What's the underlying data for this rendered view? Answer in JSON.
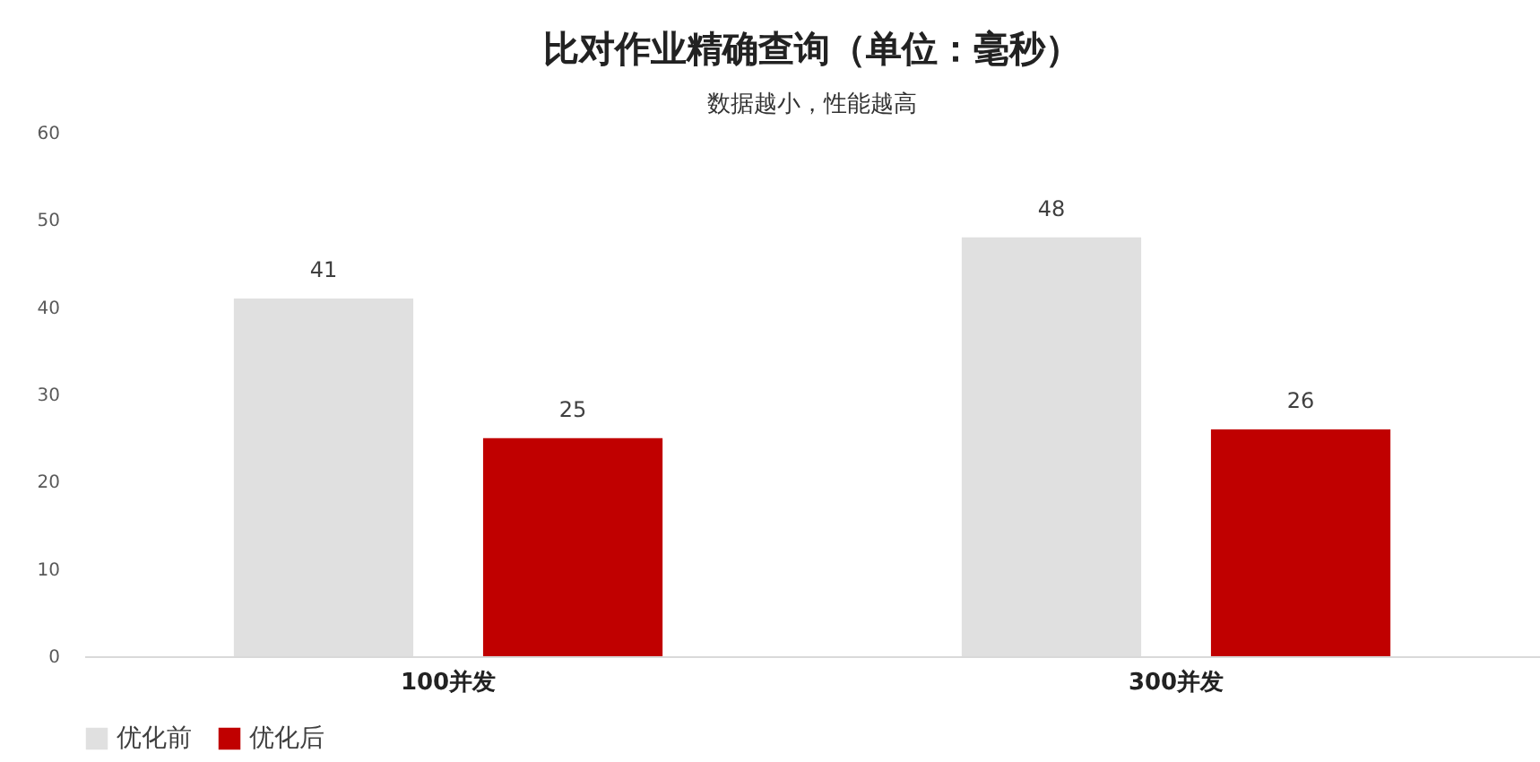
{
  "chart_data": {
    "type": "bar",
    "title": "比对作业精确查询（单位：毫秒）",
    "subtitle": "数据越小，性能越高",
    "categories": [
      "100并发",
      "300并发"
    ],
    "series": [
      {
        "name": "优化前",
        "color": "#e0e0e0",
        "values": [
          41,
          48
        ]
      },
      {
        "name": "优化后",
        "color": "#c00000",
        "values": [
          25,
          26
        ]
      }
    ],
    "ylim": [
      0,
      60
    ],
    "yticks": [
      0,
      10,
      20,
      30,
      40,
      50,
      60
    ],
    "grid": false,
    "legend": "bottom",
    "data_labels": true
  }
}
